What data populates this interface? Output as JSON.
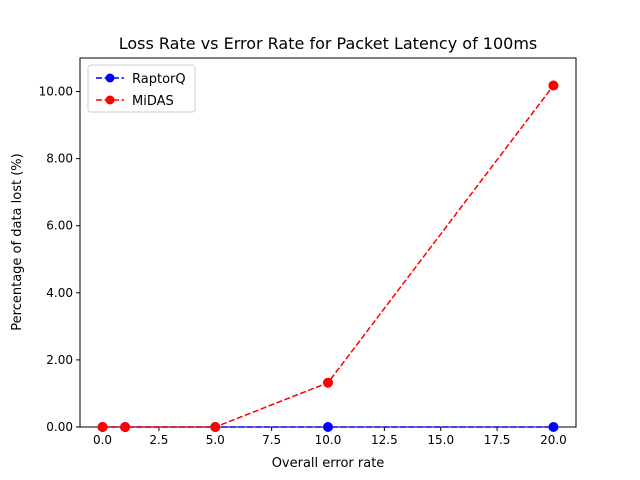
{
  "chart_data": {
    "type": "line",
    "title": "Loss Rate vs Error Rate for Packet Latency of 100ms",
    "xlabel": "Overall error rate",
    "ylabel": "Percentage of data lost (%)",
    "xlim": [
      -1.0,
      21.0
    ],
    "ylim": [
      0.0,
      11.0
    ],
    "xticks": [
      0.0,
      2.5,
      5.0,
      7.5,
      10.0,
      12.5,
      15.0,
      17.5,
      20.0
    ],
    "xtick_labels": [
      "0.0",
      "2.5",
      "5.0",
      "7.5",
      "10.0",
      "12.5",
      "15.0",
      "17.5",
      "20.0"
    ],
    "yticks": [
      0.0,
      2.0,
      4.0,
      6.0,
      8.0,
      10.0
    ],
    "ytick_labels": [
      "0.00",
      "2.00",
      "4.00",
      "6.00",
      "8.00",
      "10.00"
    ],
    "grid": false,
    "legend_position": "upper-left",
    "series": [
      {
        "name": "RaptorQ",
        "color": "#0000ff",
        "line_style": "dashed",
        "marker": "circle",
        "x": [
          0,
          1,
          5,
          10,
          20
        ],
        "y": [
          0.0,
          0.0,
          0.0,
          0.0,
          0.0
        ]
      },
      {
        "name": "MiDAS",
        "color": "#ff0000",
        "line_style": "dashed",
        "marker": "circle",
        "x": [
          0,
          1,
          5,
          10,
          20
        ],
        "y": [
          0.0,
          0.0,
          0.0,
          1.32,
          10.18
        ]
      }
    ]
  }
}
